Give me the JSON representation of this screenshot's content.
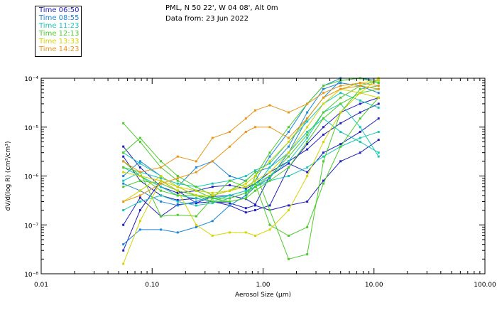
{
  "header": {
    "location": "PML, N 50 22', W 04 08', Alt 0m",
    "date": "Data from: 23 Jun 2022"
  },
  "legend": [
    {
      "label": "Time 06:50",
      "color": "#1f1fbf"
    },
    {
      "label": "Time 08:55",
      "color": "#1e88d8"
    },
    {
      "label": "Time 11:23",
      "color": "#19c8b4"
    },
    {
      "label": "Time 12:13",
      "color": "#4ccc2a"
    },
    {
      "label": "Time 13:33",
      "color": "#d4d400"
    },
    {
      "label": "Time 14:23",
      "color": "#e8961a"
    }
  ],
  "chart_data": {
    "type": "line",
    "title": "",
    "xlabel": "Aerosol Size (μm)",
    "ylabel": "dV/d(log R) (cm³/cm³)",
    "xscale": "log",
    "yscale": "log",
    "xlim": [
      0.01,
      100
    ],
    "ylim": [
      1e-08,
      0.0001
    ],
    "xticks": [
      "0.01",
      "0.10",
      "1.00",
      "10.00",
      "100.00"
    ],
    "yticks": [
      "10⁻⁸",
      "10⁻⁷",
      "10⁻⁶",
      "10⁻⁵",
      "10⁻⁴"
    ],
    "x": [
      0.055,
      0.078,
      0.12,
      0.17,
      0.25,
      0.35,
      0.5,
      0.7,
      0.85,
      1.15,
      1.7,
      2.5,
      3.5,
      5.0,
      7.5,
      11.0
    ],
    "series": [
      {
        "name": "06:50 a",
        "color": "#1f1fbf",
        "values": [
          1e-07,
          3.6e-07,
          1.5e-07,
          2.6e-07,
          2.8e-07,
          3.8e-07,
          4e-07,
          3.4e-07,
          2.6e-07,
          1e-06,
          1.8e-06,
          1.2e-06,
          3e-06,
          4.5e-06,
          8e-06,
          1.5e-05
        ]
      },
      {
        "name": "06:50 b",
        "color": "#1f1fbf",
        "values": [
          2.5e-06,
          8e-07,
          4e-07,
          3.2e-07,
          3.5e-07,
          3e-07,
          2.8e-07,
          2.2e-07,
          2.5e-07,
          2e-07,
          2.5e-07,
          3e-07,
          8e-07,
          2e-06,
          3e-06,
          5.5e-06
        ]
      },
      {
        "name": "06:50 c",
        "color": "#1f1fbf",
        "values": [
          4e-06,
          1.5e-06,
          6e-07,
          4.5e-07,
          5e-07,
          6e-07,
          6.5e-07,
          5.5e-07,
          7e-07,
          1.2e-06,
          2e-06,
          3.5e-06,
          7e-06,
          1.2e-05,
          2e-05,
          3e-05
        ]
      },
      {
        "name": "06:50 d",
        "color": "#1f1fbf",
        "values": [
          3e-08,
          2e-07,
          8e-07,
          5e-07,
          2.8e-07,
          3e-07,
          2.5e-07,
          1.8e-07,
          2e-07,
          2.5e-07,
          1.5e-06,
          4.5e-06,
          1e-05,
          2e-05,
          3e-05,
          4e-05
        ]
      },
      {
        "name": "08:55 a",
        "color": "#1e88d8",
        "values": [
          1e-06,
          2e-06,
          1e-06,
          6e-07,
          1.5e-06,
          2e-06,
          1e-06,
          8e-07,
          1.2e-06,
          1.5e-06,
          4e-06,
          2e-05,
          6e-05,
          8e-05,
          7e-05,
          5e-05
        ]
      },
      {
        "name": "08:55 b",
        "color": "#1e88d8",
        "values": [
          4e-08,
          8e-08,
          8e-08,
          7e-08,
          9e-08,
          1.2e-07,
          2.5e-07,
          4e-07,
          6e-07,
          9e-07,
          3e-06,
          1.5e-05,
          4e-05,
          9e-05,
          0.0001,
          8e-05
        ]
      },
      {
        "name": "08:55 c",
        "color": "#1e88d8",
        "values": [
          7e-07,
          5e-07,
          3e-07,
          2.5e-07,
          3e-07,
          4e-07,
          5e-07,
          6e-07,
          8e-07,
          2.5e-06,
          8e-06,
          3e-05,
          7e-05,
          0.0001,
          0.0001,
          9e-05
        ]
      },
      {
        "name": "11:23 a",
        "color": "#19c8b4",
        "values": [
          1.5e-06,
          1e-06,
          6e-07,
          4e-07,
          3.5e-07,
          3e-07,
          4e-07,
          5e-07,
          6e-07,
          8e-07,
          1e-06,
          1.5e-06,
          2.5e-06,
          4e-06,
          6e-06,
          8e-06
        ]
      },
      {
        "name": "11:23 b",
        "color": "#19c8b4",
        "values": [
          8e-07,
          1.2e-06,
          9e-07,
          7e-07,
          6e-07,
          7e-07,
          8e-07,
          1e-06,
          1.3e-06,
          1.8e-06,
          5e-06,
          1.3e-05,
          3e-05,
          5e-05,
          3.5e-05,
          2.5e-05
        ]
      },
      {
        "name": "11:23 c",
        "color": "#19c8b4",
        "values": [
          2e-07,
          3e-07,
          4e-07,
          3e-07,
          2.5e-07,
          2.8e-07,
          3.5e-07,
          4.5e-07,
          7e-07,
          1e-06,
          2e-06,
          6e-06,
          2e-05,
          3e-05,
          1e-05,
          2.5e-06
        ]
      },
      {
        "name": "11:23 d",
        "color": "#19c8b4",
        "values": [
          3e-06,
          1.8e-06,
          1e-06,
          6e-07,
          4e-07,
          3.5e-07,
          4e-07,
          5e-07,
          6e-07,
          1.5e-06,
          3e-06,
          8e-06,
          1.5e-05,
          8e-06,
          5e-06,
          3e-06
        ]
      },
      {
        "name": "12:13 a",
        "color": "#4ccc2a",
        "values": [
          1.2e-05,
          5e-06,
          1.5e-06,
          8e-07,
          5e-07,
          3.5e-07,
          3e-07,
          3.5e-07,
          1e-06,
          3e-06,
          1e-05,
          3e-05,
          7e-05,
          9e-05,
          0.0001,
          8e-05
        ]
      },
      {
        "name": "12:13 b",
        "color": "#4ccc2a",
        "values": [
          3e-06,
          6e-06,
          2e-06,
          1e-06,
          6e-07,
          4e-07,
          5e-07,
          8e-07,
          1.2e-06,
          2e-07,
          2e-08,
          2.5e-08,
          2e-06,
          2e-05,
          6e-05,
          7e-05
        ]
      },
      {
        "name": "12:13 c",
        "color": "#4ccc2a",
        "values": [
          1.5e-06,
          1.2e-06,
          1.5e-07,
          1.6e-07,
          1.5e-07,
          3.5e-07,
          8e-07,
          6e-07,
          7e-07,
          1e-07,
          6e-08,
          9e-08,
          7e-07,
          4e-06,
          1.5e-05,
          4e-05
        ]
      },
      {
        "name": "12:13 d",
        "color": "#4ccc2a",
        "values": [
          2e-06,
          1e-06,
          5e-07,
          4e-07,
          4e-07,
          3e-07,
          3e-07,
          3.5e-07,
          5e-07,
          8e-07,
          1.5e-06,
          5e-06,
          1.5e-05,
          3e-05,
          5e-05,
          6e-05
        ]
      },
      {
        "name": "12:13 e",
        "color": "#4ccc2a",
        "values": [
          6e-07,
          8e-07,
          7e-07,
          5e-07,
          4e-07,
          3.5e-07,
          3.5e-07,
          4.5e-07,
          6e-07,
          1e-06,
          2.5e-06,
          7e-06,
          2e-05,
          4e-05,
          7e-05,
          9e-05
        ]
      },
      {
        "name": "13:33 a",
        "color": "#d4d400",
        "values": [
          1.6e-08,
          1.2e-07,
          8e-07,
          5e-07,
          1e-07,
          6e-08,
          7e-08,
          7e-08,
          6e-08,
          8e-08,
          2e-07,
          1e-06,
          5e-06,
          2e-05,
          5e-05,
          0.0001
        ]
      },
      {
        "name": "13:33 b",
        "color": "#d4d400",
        "values": [
          1.2e-06,
          1e-06,
          8e-07,
          6e-07,
          5e-07,
          4.5e-07,
          5e-07,
          6e-07,
          8e-07,
          1.2e-06,
          3e-06,
          1e-05,
          3e-05,
          6e-05,
          8e-05,
          9e-05
        ]
      },
      {
        "name": "13:33 c",
        "color": "#d4d400",
        "values": [
          3e-07,
          5e-07,
          1e-06,
          6e-07,
          4e-07,
          4e-07,
          5e-07,
          7e-07,
          1e-06,
          2e-06,
          5e-06,
          1.5e-05,
          4e-05,
          6e-05,
          5e-05,
          4e-05
        ]
      },
      {
        "name": "14:23 a",
        "color": "#e8961a",
        "values": [
          2e-06,
          1.2e-06,
          1.5e-06,
          2.5e-06,
          2e-06,
          6e-06,
          8e-06,
          1.5e-05,
          2.2e-05,
          2.8e-05,
          2e-05,
          3e-05,
          5e-05,
          7e-05,
          8e-05,
          7e-05
        ]
      },
      {
        "name": "14:23 b",
        "color": "#e8961a",
        "values": [
          3e-07,
          4e-07,
          7e-07,
          9e-07,
          1.2e-06,
          2e-06,
          4e-06,
          8e-06,
          1e-05,
          1e-05,
          6e-06,
          1.5e-05,
          4e-05,
          6e-05,
          7e-05,
          6e-05
        ]
      }
    ]
  }
}
